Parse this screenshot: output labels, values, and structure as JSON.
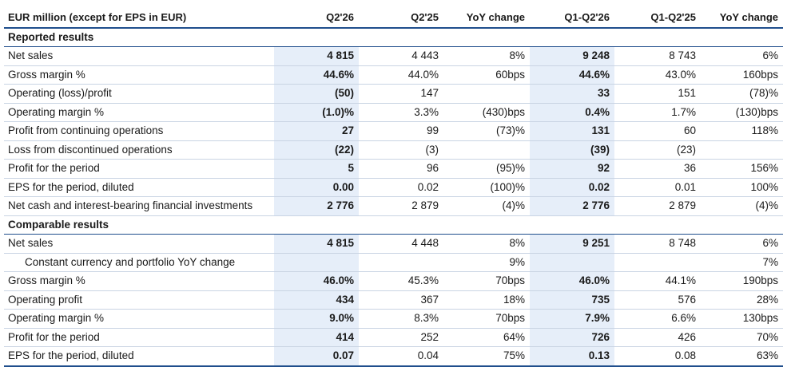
{
  "header": {
    "label": "EUR million (except for EPS in EUR)",
    "columns": [
      "Q2'26",
      "Q2'25",
      "YoY change",
      "Q1-Q2'26",
      "Q1-Q2'25",
      "YoY change"
    ]
  },
  "sections": [
    {
      "title": "Reported results",
      "rows": [
        {
          "label": "Net sales",
          "values": [
            "4 815",
            "4 443",
            "8%",
            "9 248",
            "8 743",
            "6%"
          ]
        },
        {
          "label": "Gross margin %",
          "values": [
            "44.6%",
            "44.0%",
            "60bps",
            "44.6%",
            "43.0%",
            "160bps"
          ]
        },
        {
          "label": "Operating (loss)/profit",
          "values": [
            "(50)",
            "147",
            "",
            "33",
            "151",
            "(78)%"
          ]
        },
        {
          "label": "Operating margin %",
          "values": [
            "(1.0)%",
            "3.3%",
            "(430)bps",
            "0.4%",
            "1.7%",
            "(130)bps"
          ]
        },
        {
          "label": "Profit from continuing operations",
          "values": [
            "27",
            "99",
            "(73)%",
            "131",
            "60",
            "118%"
          ]
        },
        {
          "label": "Loss from discontinued operations",
          "values": [
            "(22)",
            "(3)",
            "",
            "(39)",
            "(23)",
            ""
          ]
        },
        {
          "label": "Profit for the period",
          "values": [
            "5",
            "96",
            "(95)%",
            "92",
            "36",
            "156%"
          ]
        },
        {
          "label": "EPS for the period, diluted",
          "values": [
            "0.00",
            "0.02",
            "(100)%",
            "0.02",
            "0.01",
            "100%"
          ]
        },
        {
          "label": "Net cash and interest-bearing financial investments",
          "values": [
            "2 776",
            "2 879",
            "(4)%",
            "2 776",
            "2 879",
            "(4)%"
          ]
        }
      ]
    },
    {
      "title": "Comparable results",
      "rows": [
        {
          "label": "Net sales",
          "values": [
            "4 815",
            "4 448",
            "8%",
            "9 251",
            "8 748",
            "6%"
          ]
        },
        {
          "label": "Constant currency and portfolio YoY change",
          "values": [
            "",
            "",
            "9%",
            "",
            "",
            "7%"
          ],
          "indent": true
        },
        {
          "label": "Gross margin %",
          "values": [
            "46.0%",
            "45.3%",
            "70bps",
            "46.0%",
            "44.1%",
            "190bps"
          ]
        },
        {
          "label": "Operating profit",
          "values": [
            "434",
            "367",
            "18%",
            "735",
            "576",
            "28%"
          ]
        },
        {
          "label": "Operating margin %",
          "values": [
            "9.0%",
            "8.3%",
            "70bps",
            "7.9%",
            "6.6%",
            "130bps"
          ]
        },
        {
          "label": "Profit for the period",
          "values": [
            "414",
            "252",
            "64%",
            "726",
            "426",
            "70%"
          ]
        },
        {
          "label": "EPS for the period, diluted",
          "values": [
            "0.07",
            "0.04",
            "75%",
            "0.13",
            "0.08",
            "63%"
          ]
        }
      ]
    }
  ],
  "colors": {
    "highlight": "#e6eef9",
    "rule": "#1f4e8c",
    "row_rule": "#c9d4e3"
  }
}
